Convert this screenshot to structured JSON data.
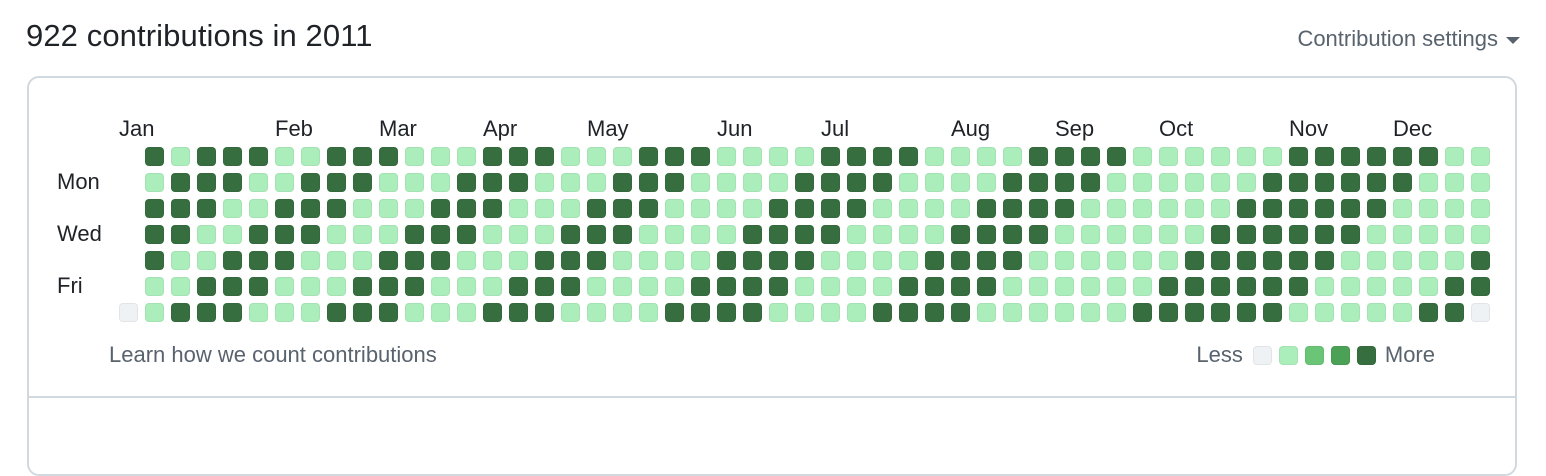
{
  "header": {
    "title": "922 contributions in 2011",
    "settings_label": "Contribution settings",
    "settings_icon": "caret-down-icon"
  },
  "calendar": {
    "months": [
      {
        "label": "Jan",
        "week": 0
      },
      {
        "label": "Feb",
        "week": 6
      },
      {
        "label": "Mar",
        "week": 10
      },
      {
        "label": "Apr",
        "week": 14
      },
      {
        "label": "May",
        "week": 18
      },
      {
        "label": "Jun",
        "week": 23
      },
      {
        "label": "Jul",
        "week": 27
      },
      {
        "label": "Aug",
        "week": 32
      },
      {
        "label": "Sep",
        "week": 36
      },
      {
        "label": "Oct",
        "week": 40
      },
      {
        "label": "Nov",
        "week": 45
      },
      {
        "label": "Dec",
        "week": 49
      }
    ],
    "day_labels": [
      {
        "label": "Mon",
        "row": 1
      },
      {
        "label": "Wed",
        "row": 3
      },
      {
        "label": "Fri",
        "row": 5
      }
    ],
    "colors": [
      "#eff2f5",
      "#aceebb",
      "#6bc576",
      "#4ba155",
      "#366e3f"
    ],
    "levels": [
      [
        -1,
        4,
        1,
        4,
        4,
        4,
        1,
        1,
        4,
        4,
        4,
        1,
        1,
        1,
        4,
        4,
        4,
        1,
        1,
        1,
        4,
        4,
        4,
        1,
        1,
        1,
        1,
        4,
        4,
        4,
        4,
        1,
        1,
        1,
        1,
        4,
        4,
        4,
        4,
        1,
        1,
        1,
        1,
        1,
        1,
        4,
        4,
        4,
        4,
        4,
        4,
        1,
        1
      ],
      [
        -1,
        1,
        4,
        4,
        4,
        1,
        1,
        4,
        4,
        4,
        1,
        1,
        1,
        4,
        4,
        4,
        1,
        1,
        1,
        4,
        4,
        4,
        1,
        1,
        1,
        1,
        4,
        4,
        4,
        4,
        1,
        1,
        1,
        1,
        4,
        4,
        4,
        4,
        1,
        1,
        1,
        1,
        1,
        1,
        4,
        4,
        4,
        4,
        4,
        4,
        1,
        1,
        1
      ],
      [
        -1,
        4,
        4,
        4,
        1,
        1,
        4,
        4,
        4,
        1,
        1,
        1,
        4,
        4,
        4,
        1,
        1,
        1,
        4,
        4,
        4,
        1,
        1,
        1,
        1,
        4,
        4,
        4,
        4,
        1,
        1,
        1,
        1,
        4,
        4,
        4,
        4,
        1,
        1,
        1,
        1,
        1,
        1,
        4,
        4,
        4,
        4,
        4,
        4,
        1,
        1,
        1,
        1
      ],
      [
        -1,
        4,
        4,
        1,
        1,
        4,
        4,
        4,
        1,
        1,
        1,
        4,
        4,
        4,
        1,
        1,
        1,
        4,
        4,
        4,
        1,
        1,
        1,
        1,
        4,
        4,
        4,
        4,
        1,
        1,
        1,
        1,
        4,
        4,
        4,
        4,
        1,
        1,
        1,
        1,
        1,
        1,
        4,
        4,
        4,
        4,
        4,
        4,
        1,
        1,
        1,
        1,
        1
      ],
      [
        -1,
        4,
        1,
        1,
        4,
        4,
        4,
        1,
        1,
        1,
        4,
        4,
        4,
        1,
        1,
        1,
        4,
        4,
        4,
        1,
        1,
        1,
        1,
        4,
        4,
        4,
        4,
        1,
        1,
        1,
        1,
        4,
        4,
        4,
        4,
        1,
        1,
        1,
        1,
        1,
        1,
        4,
        4,
        4,
        4,
        4,
        4,
        1,
        1,
        1,
        1,
        1,
        4
      ],
      [
        -1,
        1,
        1,
        4,
        4,
        4,
        1,
        1,
        1,
        4,
        4,
        4,
        1,
        1,
        1,
        4,
        4,
        4,
        1,
        1,
        1,
        1,
        4,
        4,
        4,
        4,
        1,
        1,
        1,
        1,
        4,
        4,
        4,
        4,
        1,
        1,
        1,
        1,
        1,
        1,
        4,
        4,
        4,
        4,
        4,
        4,
        1,
        1,
        1,
        1,
        1,
        4,
        4
      ],
      [
        0,
        1,
        4,
        4,
        4,
        1,
        1,
        1,
        4,
        4,
        4,
        1,
        1,
        1,
        4,
        4,
        4,
        1,
        1,
        1,
        1,
        4,
        4,
        4,
        4,
        1,
        1,
        1,
        1,
        4,
        4,
        4,
        4,
        1,
        1,
        1,
        1,
        1,
        1,
        4,
        4,
        4,
        4,
        4,
        4,
        1,
        1,
        1,
        1,
        1,
        4,
        4,
        0
      ]
    ]
  },
  "footer": {
    "link_label": "Learn how we count contributions",
    "legend_less": "Less",
    "legend_more": "More"
  }
}
